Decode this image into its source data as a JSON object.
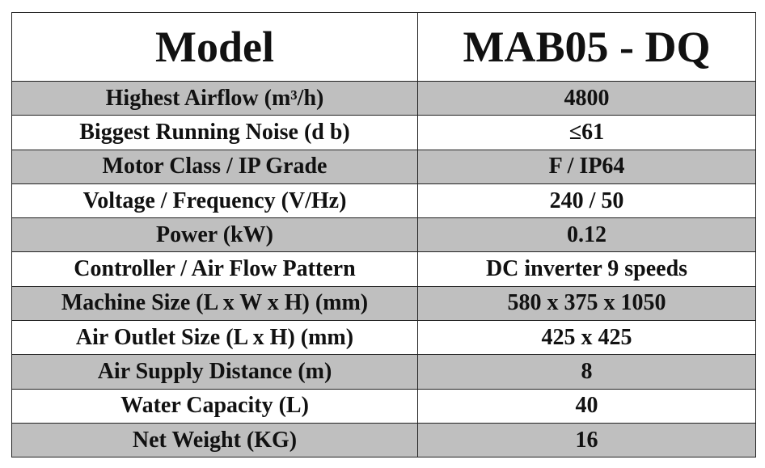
{
  "table": {
    "header": [
      "Model",
      "MAB05 - DQ"
    ],
    "rows": [
      [
        "Highest Airflow (m³/h)",
        "4800"
      ],
      [
        "Biggest Running Noise (d b)",
        "≤61"
      ],
      [
        "Motor Class / IP Grade",
        "F / IP64"
      ],
      [
        "Voltage / Frequency (V/Hz)",
        "240 / 50"
      ],
      [
        "Power (kW)",
        "0.12"
      ],
      [
        "Controller / Air Flow Pattern",
        "DC inverter 9 speeds"
      ],
      [
        "Machine Size (L x W x H) (mm)",
        "580 x 375 x 1050"
      ],
      [
        "Air Outlet Size (L x H) (mm)",
        "425 x 425"
      ],
      [
        "Air Supply Distance (m)",
        "8"
      ],
      [
        "Water Capacity (L)",
        "40"
      ],
      [
        "Net Weight (KG)",
        "16"
      ]
    ]
  }
}
